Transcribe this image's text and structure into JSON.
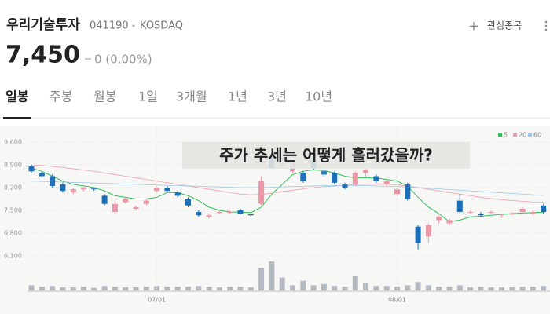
{
  "header": {
    "name": "우리기술투자",
    "code": "041190",
    "market": "KOSDAQ",
    "watch": "관심종목",
    "price": "7,450",
    "change": "0 (0.00%)"
  },
  "tabs": [
    "일봉",
    "주봉",
    "월봉",
    "1일",
    "3개월",
    "1년",
    "3년",
    "10년"
  ],
  "overlay": "주가 추세는 어떻게 흘러갔을까?",
  "chart_data": {
    "type": "candlestick",
    "categories": [
      null,
      null,
      null,
      null,
      null,
      null,
      null,
      null,
      null,
      null,
      null,
      null,
      "07/01",
      null,
      null,
      null,
      null,
      null,
      null,
      null,
      null,
      null,
      null,
      null,
      null,
      null,
      null,
      null,
      null,
      null,
      null,
      null,
      null,
      null,
      null,
      "08/01",
      null,
      null,
      null,
      null,
      null,
      null,
      null,
      null,
      null,
      null,
      null,
      null,
      null,
      null
    ],
    "open": [
      8850,
      8650,
      8550,
      8300,
      8050,
      8150,
      8170,
      7950,
      7450,
      7750,
      7550,
      7700,
      8100,
      8200,
      8050,
      7850,
      7450,
      7300,
      7420,
      7430,
      7500,
      7380,
      7700,
      9150,
      8850,
      8700,
      8650,
      9050,
      8700,
      8650,
      8300,
      8300,
      8650,
      8550,
      8300,
      8000,
      8300,
      7000,
      6700,
      7200,
      7100,
      7800,
      7450,
      7400,
      7430,
      7350,
      7400,
      7450,
      7400,
      7650
    ],
    "high": [
      8900,
      8700,
      8600,
      8350,
      8200,
      8250,
      8200,
      8000,
      7800,
      7900,
      7650,
      7850,
      8250,
      8250,
      8100,
      7900,
      7500,
      7400,
      7470,
      7500,
      7550,
      7400,
      8550,
      9250,
      9000,
      9000,
      8700,
      9100,
      8750,
      8700,
      8350,
      8700,
      8800,
      8600,
      8450,
      8200,
      8350,
      7050,
      7100,
      7350,
      7250,
      8000,
      7500,
      7450,
      7500,
      7400,
      7450,
      7600,
      7500,
      7700
    ],
    "low": [
      8650,
      8500,
      8200,
      8050,
      8000,
      8100,
      8100,
      7650,
      7400,
      7700,
      7500,
      7650,
      8050,
      8050,
      7900,
      7600,
      7300,
      7250,
      7400,
      7400,
      7380,
      7300,
      7650,
      8800,
      8800,
      8650,
      8350,
      8750,
      8550,
      8300,
      8150,
      8250,
      8500,
      8350,
      8250,
      7950,
      7800,
      6300,
      6500,
      7100,
      7050,
      7400,
      7400,
      7300,
      7400,
      7300,
      7350,
      7400,
      7350,
      7400
    ],
    "close": [
      8700,
      8550,
      8250,
      8100,
      8150,
      8200,
      8150,
      7700,
      7700,
      7850,
      7600,
      7800,
      8200,
      8100,
      7950,
      7650,
      7350,
      7350,
      7450,
      7450,
      7400,
      7350,
      8400,
      8800,
      8950,
      8950,
      8400,
      8800,
      8600,
      8350,
      8200,
      8650,
      8750,
      8400,
      8400,
      8150,
      7850,
      6500,
      7050,
      7300,
      7200,
      7450,
      7450,
      7350,
      7450,
      7380,
      7400,
      7550,
      7450,
      7450
    ],
    "volume": [
      8,
      6,
      7,
      5,
      5,
      6,
      4,
      7,
      6,
      5,
      5,
      6,
      7,
      6,
      6,
      6,
      7,
      6,
      5,
      6,
      6,
      5,
      35,
      45,
      20,
      8,
      15,
      8,
      10,
      7,
      6,
      22,
      12,
      7,
      7,
      6,
      8,
      13,
      8,
      6,
      6,
      8,
      5,
      6,
      5,
      5,
      5,
      6,
      6,
      7
    ],
    "ma": [
      {
        "name": "5",
        "color": "#2fc25b",
        "values": [
          8800,
          8700,
          8550,
          8400,
          8300,
          8250,
          8200,
          8100,
          7950,
          7900,
          7850,
          7850,
          7900,
          8050,
          8050,
          7950,
          7800,
          7600,
          7500,
          7450,
          7450,
          7430,
          7600,
          8000,
          8300,
          8600,
          8700,
          8750,
          8720,
          8650,
          8550,
          8500,
          8500,
          8500,
          8450,
          8400,
          8250,
          7900,
          7600,
          7400,
          7150,
          7200,
          7300,
          7320,
          7350,
          7380,
          7400,
          7420,
          7430,
          7450
        ]
      },
      {
        "name": "20",
        "color": "#eaa0b0",
        "values": [
          8900,
          8880,
          8850,
          8820,
          8780,
          8740,
          8700,
          8650,
          8600,
          8550,
          8500,
          8450,
          8400,
          8350,
          8300,
          8250,
          8200,
          8150,
          8100,
          8050,
          8000,
          7980,
          7990,
          8030,
          8080,
          8120,
          8160,
          8200,
          8230,
          8250,
          8270,
          8290,
          8300,
          8310,
          8300,
          8280,
          8250,
          8200,
          8150,
          8100,
          8050,
          8000,
          7950,
          7900,
          7860,
          7830,
          7800,
          7780,
          7760,
          7750
        ]
      },
      {
        "name": "60",
        "color": "#9fc7e8",
        "values": [
          8400,
          8390,
          8380,
          8370,
          8360,
          8350,
          8340,
          8330,
          8320,
          8310,
          8300,
          8290,
          8280,
          8270,
          8260,
          8250,
          8240,
          8230,
          8220,
          8210,
          8200,
          8200,
          8200,
          8210,
          8220,
          8230,
          8240,
          8250,
          8260,
          8260,
          8260,
          8260,
          8260,
          8250,
          8240,
          8230,
          8220,
          8200,
          8180,
          8160,
          8140,
          8120,
          8100,
          8080,
          8060,
          8040,
          8020,
          8000,
          7980,
          7960
        ]
      }
    ],
    "up_color": "#eb97a8",
    "down_color": "#1b70b9",
    "volume_color": "#b3bac2",
    "ylim": [
      6100,
      9600
    ],
    "yticks": [
      {
        "value": 6100,
        "label": "6,100"
      },
      {
        "value": 6800,
        "label": "6,800"
      },
      {
        "value": 7500,
        "label": "7,500"
      },
      {
        "value": 8200,
        "label": "8,200"
      },
      {
        "value": 8900,
        "label": "8,900"
      },
      {
        "value": 9600,
        "label": "9,600"
      }
    ]
  }
}
